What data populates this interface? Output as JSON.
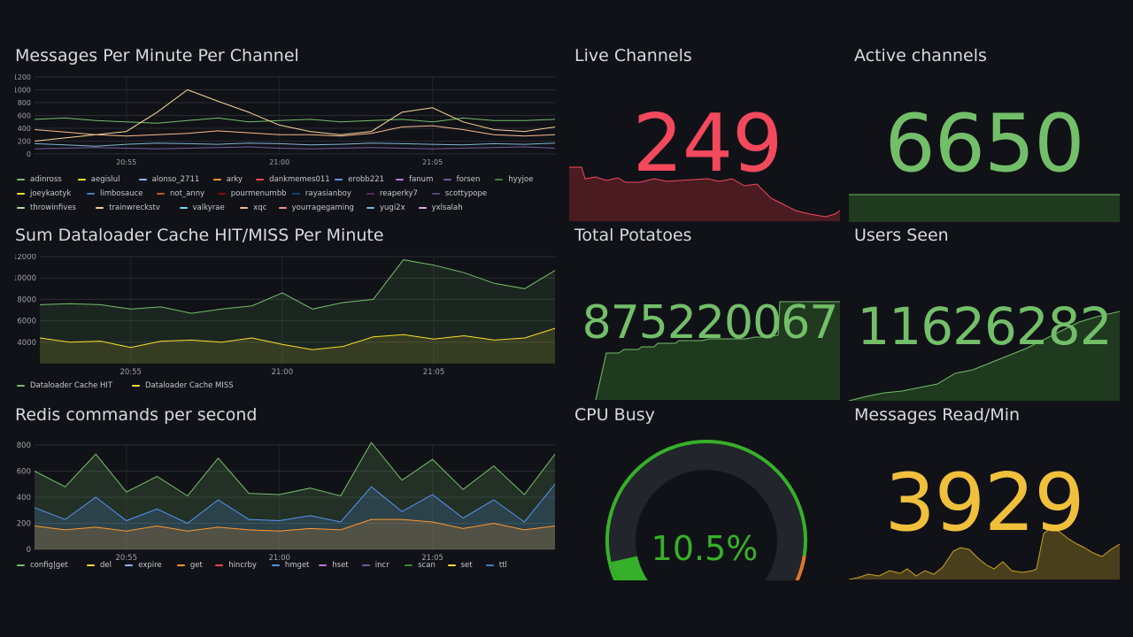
{
  "panels": {
    "messages": {
      "title": "Messages Per Minute Per Channel",
      "legend": [
        {
          "name": "adinross",
          "color": "#73bf69"
        },
        {
          "name": "aegislul",
          "color": "#fade2a"
        },
        {
          "name": "alonso_2711",
          "color": "#8ab8ff"
        },
        {
          "name": "arky",
          "color": "#ff9830"
        },
        {
          "name": "dankmemes011",
          "color": "#f2495c"
        },
        {
          "name": "erobb221",
          "color": "#5794f2"
        },
        {
          "name": "fanum",
          "color": "#b877d9"
        },
        {
          "name": "forsen",
          "color": "#705da0"
        },
        {
          "name": "hyyjoe",
          "color": "#37872d"
        },
        {
          "name": "joeykaotyk",
          "color": "#fade2a"
        },
        {
          "name": "limbosauce",
          "color": "#447ebc"
        },
        {
          "name": "not_anny",
          "color": "#c15c17"
        },
        {
          "name": "pourmenumbb",
          "color": "#890f02"
        },
        {
          "name": "rayasianboy",
          "color": "#0a437c"
        },
        {
          "name": "reaperky7",
          "color": "#6d1f62"
        },
        {
          "name": "scottypope",
          "color": "#584477"
        },
        {
          "name": "throwinfives",
          "color": "#b7dbab"
        },
        {
          "name": "trainwreckstv",
          "color": "#f4d598"
        },
        {
          "name": "valkyrae",
          "color": "#70dbed"
        },
        {
          "name": "xqc",
          "color": "#f9ba8f"
        },
        {
          "name": "yourragegaming",
          "color": "#f29191"
        },
        {
          "name": "yugi2x",
          "color": "#82b5d8"
        },
        {
          "name": "yxlsalah",
          "color": "#e5a8e2"
        }
      ],
      "y_ticks": [
        "1200",
        "1000",
        "800",
        "600",
        "400",
        "200",
        "0"
      ],
      "x_ticks": [
        "20:55",
        "21:00",
        "21:05"
      ]
    },
    "cache": {
      "title": "Sum Dataloader Cache HIT/MISS Per Minute",
      "legend": [
        {
          "name": "Dataloader Cache HIT",
          "color": "#73bf69"
        },
        {
          "name": "Dataloader Cache MISS",
          "color": "#fade2a"
        }
      ],
      "y_ticks": [
        "12000",
        "10000",
        "8000",
        "6000",
        "4000"
      ],
      "x_ticks": [
        "20:55",
        "21:00",
        "21:05"
      ]
    },
    "redis": {
      "title": "Redis commands per second",
      "legend": [
        {
          "name": "config|get",
          "color": "#73bf69"
        },
        {
          "name": "del",
          "color": "#fade2a"
        },
        {
          "name": "expire",
          "color": "#8ab8ff"
        },
        {
          "name": "get",
          "color": "#ff9830"
        },
        {
          "name": "hincrby",
          "color": "#f2495c"
        },
        {
          "name": "hmget",
          "color": "#5794f2"
        },
        {
          "name": "hset",
          "color": "#b877d9"
        },
        {
          "name": "incr",
          "color": "#705da0"
        },
        {
          "name": "scan",
          "color": "#37872d"
        },
        {
          "name": "set",
          "color": "#fade2a"
        },
        {
          "name": "ttl",
          "color": "#447ebc"
        }
      ],
      "y_ticks": [
        "800",
        "600",
        "400",
        "200",
        "0"
      ],
      "x_ticks": [
        "20:55",
        "21:00",
        "21:05"
      ]
    },
    "live": {
      "title": "Live Channels",
      "value": "249",
      "color": "#f2495c"
    },
    "active": {
      "title": "Active channels",
      "value": "6650",
      "color": "#73bf69"
    },
    "potatoes": {
      "title": "Total Potatoes",
      "value": "875220067",
      "color": "#73bf69"
    },
    "users": {
      "title": "Users Seen",
      "value": "11626282",
      "color": "#73bf69"
    },
    "cpu": {
      "title": "CPU Busy",
      "value": "10.5%",
      "percent": 10.5,
      "color": "#37b02a"
    },
    "msgread": {
      "title": "Messages Read/Min",
      "value": "3929",
      "color": "#f0c03d"
    }
  },
  "chart_data": [
    {
      "type": "line",
      "title": "Messages Per Minute Per Channel",
      "ylim": [
        0,
        1200
      ],
      "x": [
        "20:52",
        "20:53",
        "20:54",
        "20:55",
        "20:56",
        "20:57",
        "20:58",
        "20:59",
        "21:00",
        "21:01",
        "21:02",
        "21:03",
        "21:04",
        "21:05",
        "21:06",
        "21:07",
        "21:08",
        "21:09"
      ],
      "series": [
        {
          "name": "adinross",
          "values": [
            540,
            560,
            520,
            500,
            480,
            520,
            560,
            500,
            520,
            540,
            500,
            520,
            540,
            500,
            560,
            520,
            520,
            540
          ]
        },
        {
          "name": "trainwreckstv",
          "values": [
            200,
            250,
            300,
            350,
            650,
            1000,
            820,
            650,
            450,
            350,
            300,
            350,
            650,
            720,
            500,
            380,
            350,
            420
          ]
        },
        {
          "name": "xqc",
          "values": [
            380,
            340,
            300,
            280,
            300,
            320,
            360,
            330,
            300,
            300,
            280,
            320,
            420,
            440,
            380,
            300,
            280,
            300
          ]
        },
        {
          "name": "yugi2x",
          "values": [
            160,
            140,
            120,
            150,
            170,
            160,
            150,
            170,
            160,
            140,
            150,
            170,
            160,
            150,
            140,
            160,
            150,
            170
          ]
        },
        {
          "name": "forsen",
          "values": [
            80,
            90,
            100,
            90,
            80,
            90,
            100,
            110,
            90,
            80,
            90,
            100,
            90,
            80,
            90,
            100,
            110,
            90
          ]
        }
      ]
    },
    {
      "type": "area",
      "title": "Sum Dataloader Cache HIT/MISS Per Minute",
      "ylim": [
        2000,
        12000
      ],
      "x": [
        "20:52",
        "20:53",
        "20:54",
        "20:55",
        "20:56",
        "20:57",
        "20:58",
        "20:59",
        "21:00",
        "21:01",
        "21:02",
        "21:03",
        "21:04",
        "21:05",
        "21:06",
        "21:07",
        "21:08",
        "21:09"
      ],
      "series": [
        {
          "name": "Dataloader Cache HIT",
          "values": [
            7500,
            7600,
            7500,
            7100,
            7300,
            6700,
            7100,
            7400,
            8600,
            7100,
            7700,
            8000,
            11700,
            11200,
            10500,
            9500,
            9000,
            10700
          ]
        },
        {
          "name": "Dataloader Cache MISS",
          "values": [
            4400,
            4000,
            4100,
            3500,
            4100,
            4200,
            4000,
            4400,
            3800,
            3300,
            3600,
            4500,
            4700,
            4300,
            4600,
            4200,
            4400,
            5300
          ]
        }
      ]
    },
    {
      "type": "area",
      "title": "Redis commands per second",
      "ylim": [
        0,
        800
      ],
      "x": [
        "20:52",
        "20:53",
        "20:54",
        "20:55",
        "20:56",
        "20:57",
        "20:58",
        "20:59",
        "21:00",
        "21:01",
        "21:02",
        "21:03",
        "21:04",
        "21:05",
        "21:06",
        "21:07",
        "21:08",
        "21:09"
      ],
      "series": [
        {
          "name": "config|get",
          "values": [
            600,
            480,
            730,
            440,
            560,
            410,
            700,
            430,
            420,
            470,
            410,
            820,
            530,
            690,
            460,
            640,
            420,
            730
          ]
        },
        {
          "name": "hmget",
          "values": [
            320,
            230,
            400,
            220,
            310,
            200,
            380,
            230,
            220,
            260,
            210,
            480,
            290,
            420,
            240,
            380,
            210,
            500
          ]
        },
        {
          "name": "get",
          "values": [
            180,
            150,
            170,
            140,
            180,
            140,
            170,
            150,
            140,
            160,
            150,
            230,
            230,
            210,
            160,
            200,
            150,
            180
          ]
        }
      ]
    }
  ]
}
